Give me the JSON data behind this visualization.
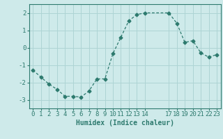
{
  "x": [
    0,
    1,
    2,
    3,
    4,
    5,
    6,
    7,
    8,
    9,
    10,
    11,
    12,
    13,
    14,
    17,
    18,
    19,
    20,
    21,
    22,
    23
  ],
  "y": [
    -1.3,
    -1.7,
    -2.1,
    -2.4,
    -2.8,
    -2.8,
    -2.85,
    -2.5,
    -1.8,
    -1.8,
    -0.35,
    0.6,
    1.55,
    1.9,
    2.0,
    2.0,
    1.4,
    0.3,
    0.4,
    -0.3,
    -0.55,
    -0.4
  ],
  "xlabel": "Humidex (Indice chaleur)",
  "ylabel": "",
  "xlim": [
    -0.5,
    23.5
  ],
  "ylim": [
    -3.5,
    2.5
  ],
  "yticks": [
    -3,
    -2,
    -1,
    0,
    1,
    2
  ],
  "xticks": [
    0,
    1,
    2,
    3,
    4,
    5,
    6,
    7,
    8,
    9,
    10,
    11,
    12,
    13,
    14,
    17,
    18,
    19,
    20,
    21,
    22,
    23
  ],
  "line_color": "#2d7a6e",
  "marker": "D",
  "marker_size": 2.5,
  "bg_color": "#ceeaea",
  "grid_color": "#aed4d4",
  "label_fontsize": 7,
  "tick_fontsize": 6.5
}
